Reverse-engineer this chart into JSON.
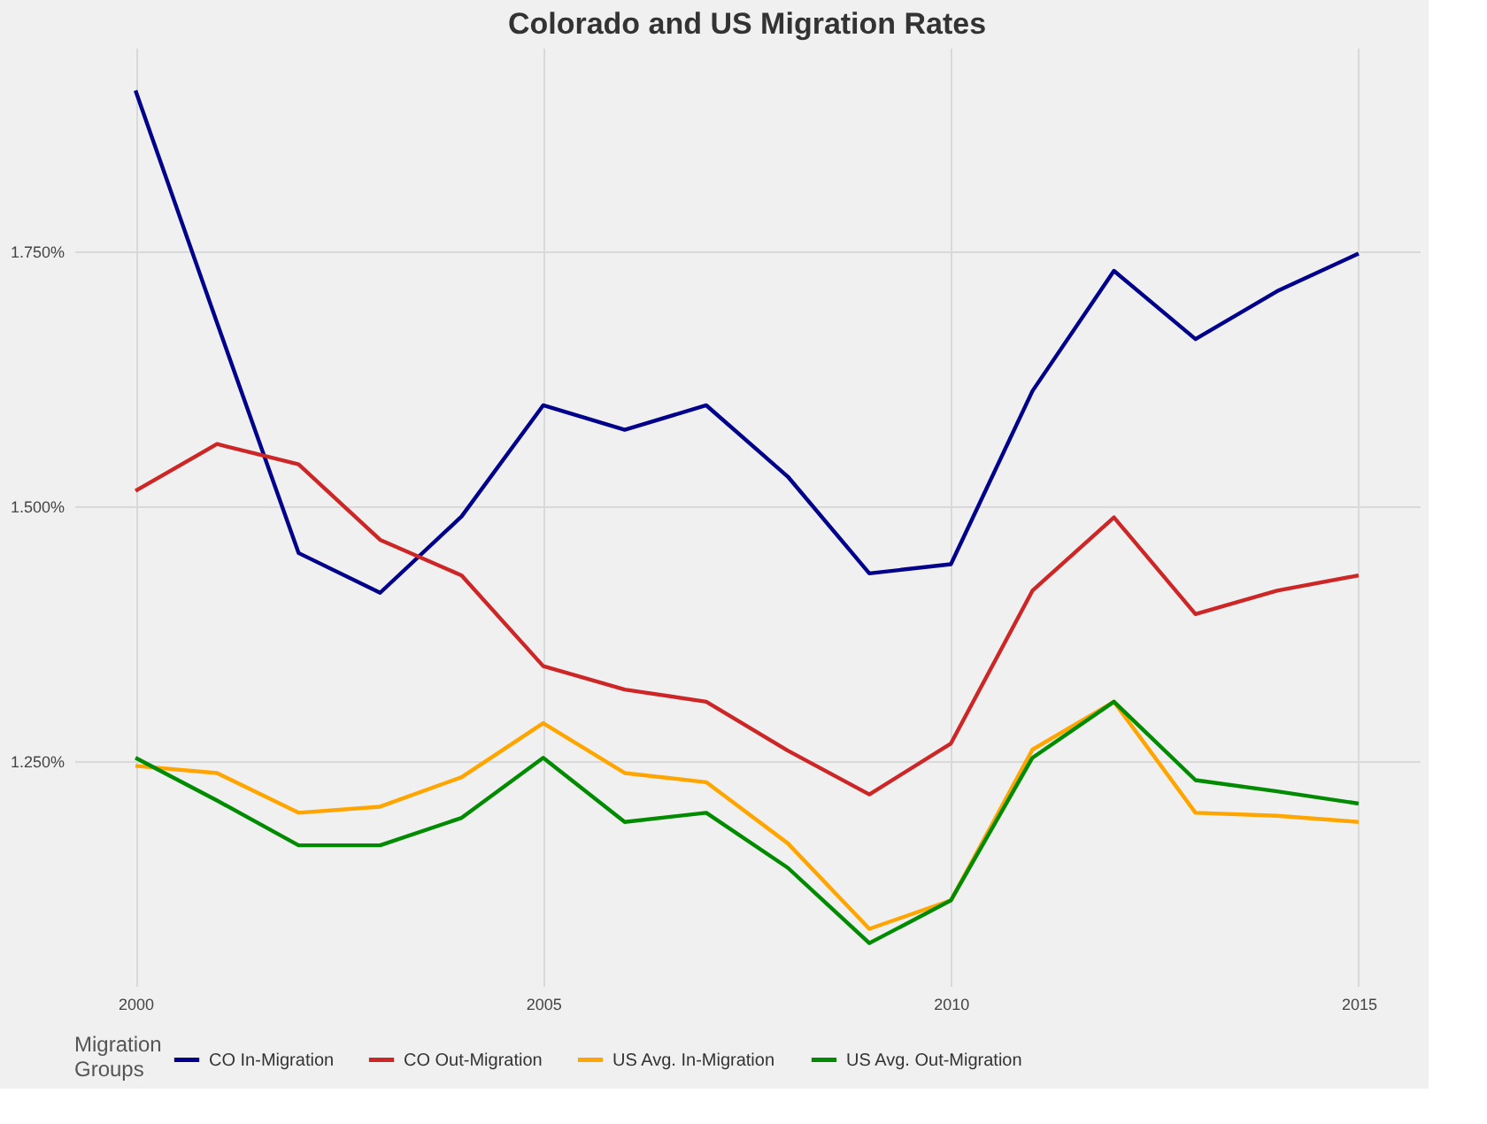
{
  "chart_data": {
    "type": "line",
    "title": "Colorado and US Migration Rates",
    "legend_title": "Migration Groups",
    "legend": "bottom",
    "grid": true,
    "marker": "none",
    "line_style": "solid",
    "x": [
      2000,
      2001,
      2002,
      2003,
      2004,
      2005,
      2006,
      2007,
      2008,
      2009,
      2010,
      2011,
      2012,
      2013,
      2014,
      2015
    ],
    "xlim": [
      1999.25,
      2015.75
    ],
    "xticks": [
      2000,
      2005,
      2010,
      2015
    ],
    "ylim": [
      1.029,
      1.95
    ],
    "yticks": [
      {
        "value": 1.25,
        "label": "1.250%"
      },
      {
        "value": 1.5,
        "label": "1.500%"
      },
      {
        "value": 1.75,
        "label": "1.750%"
      }
    ],
    "series": [
      {
        "name": "CO In-Migration",
        "color": "#00008b",
        "values": [
          1.908,
          1.68,
          1.454,
          1.415,
          1.49,
          1.599,
          1.575,
          1.599,
          1.529,
          1.434,
          1.443,
          1.613,
          1.731,
          1.664,
          1.711,
          1.748
        ]
      },
      {
        "name": "CO Out-Migration",
        "color": "#cd2626",
        "values": [
          1.515,
          1.561,
          1.541,
          1.467,
          1.432,
          1.343,
          1.32,
          1.308,
          1.26,
          1.217,
          1.267,
          1.417,
          1.489,
          1.394,
          1.417,
          1.432
        ]
      },
      {
        "name": "US Avg. In-Migration",
        "color": "#ffa500",
        "values": [
          1.245,
          1.238,
          1.199,
          1.205,
          1.234,
          1.287,
          1.238,
          1.229,
          1.169,
          1.085,
          1.113,
          1.261,
          1.308,
          1.199,
          1.196,
          1.19
        ]
      },
      {
        "name": "US Avg. Out-Migration",
        "color": "#008b00",
        "values": [
          1.253,
          1.211,
          1.167,
          1.167,
          1.194,
          1.253,
          1.19,
          1.199,
          1.145,
          1.071,
          1.113,
          1.253,
          1.308,
          1.231,
          1.22,
          1.208
        ]
      }
    ]
  }
}
